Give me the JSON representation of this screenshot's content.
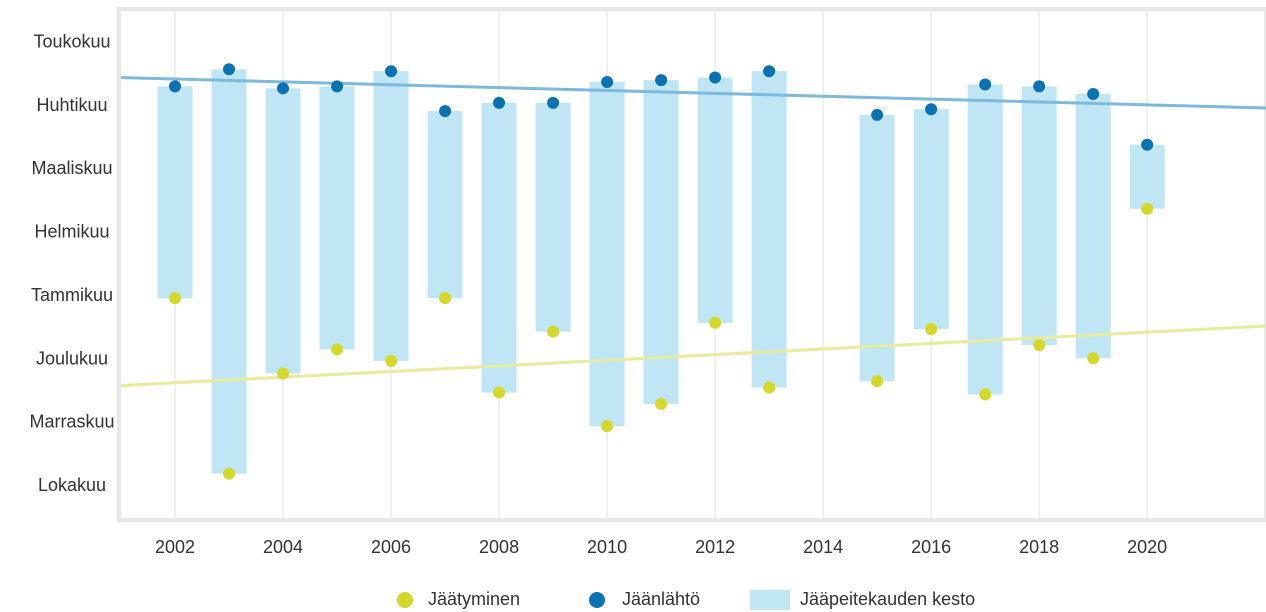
{
  "chart_data": {
    "type": "floating-range",
    "x": [
      2002,
      2003,
      2004,
      2005,
      2006,
      2007,
      2008,
      2009,
      2010,
      2011,
      2012,
      2013,
      2015,
      2016,
      2017,
      2018,
      2019,
      2020
    ],
    "series": [
      {
        "name": "Jäätyminen",
        "color": "#d3d82a",
        "values": [
          2.97,
          0.2,
          1.78,
          2.16,
          1.98,
          2.97,
          1.48,
          2.44,
          0.95,
          1.3,
          2.58,
          1.56,
          1.66,
          2.48,
          1.45,
          2.23,
          2.02,
          4.38
        ]
      },
      {
        "name": "Jäänlähtö",
        "color": "#0a72b0",
        "values": [
          6.31,
          6.58,
          6.28,
          6.31,
          6.55,
          5.92,
          6.05,
          6.05,
          6.38,
          6.41,
          6.45,
          6.55,
          5.86,
          5.95,
          6.34,
          6.31,
          6.19,
          5.39
        ]
      }
    ],
    "range_name": "Jääpeitekauden kesto",
    "range_color": "#c0e6f5",
    "trends": [
      {
        "color": "#e8eb9c",
        "x": [
          2001,
          2022.2
        ],
        "values": [
          1.59,
          2.53
        ]
      },
      {
        "color": "#7db9dc",
        "x": [
          2001,
          2022.2
        ],
        "values": [
          6.45,
          5.97
        ]
      }
    ],
    "xlim": [
      2001,
      2022.2
    ],
    "xticks": [
      2002,
      2004,
      2006,
      2008,
      2010,
      2012,
      2014,
      2016,
      2018,
      2020
    ],
    "ylim": [
      -0.5,
      7.5
    ],
    "yticks": [
      {
        "value": 0,
        "label": "Lokakuu"
      },
      {
        "value": 1,
        "label": "Marraskuu"
      },
      {
        "value": 2,
        "label": "Joulukuu"
      },
      {
        "value": 3,
        "label": "Tammikuu"
      },
      {
        "value": 4,
        "label": "Helmikuu"
      },
      {
        "value": 5,
        "label": "Maaliskuu"
      },
      {
        "value": 6,
        "label": "Huhtikuu"
      },
      {
        "value": 7,
        "label": "Toukokuu"
      }
    ],
    "grid": true
  }
}
